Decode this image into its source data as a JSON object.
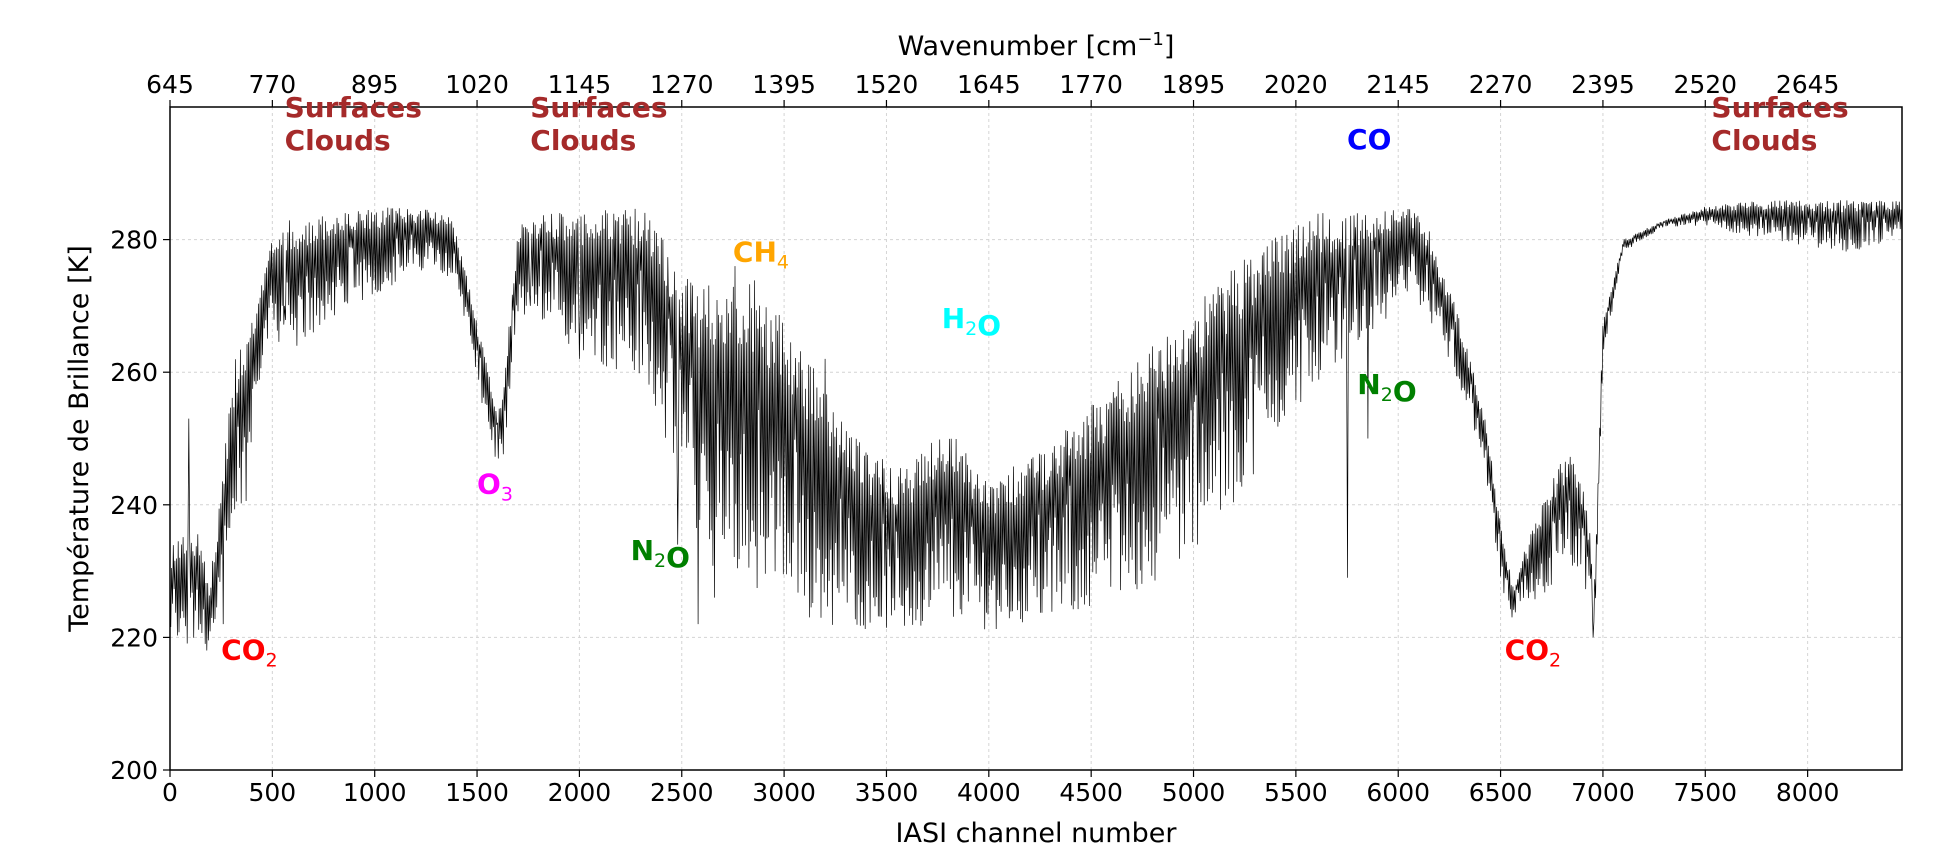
{
  "chart_data": {
    "type": "line",
    "xlabel": "IASI channel number",
    "ylabel": "Température de Brillance [K]",
    "x2label_main": "Wavenumber [cm",
    "x2label_sup": "−1",
    "x2label_end": "]",
    "xlim": [
      0,
      8461
    ],
    "ylim": [
      200,
      300
    ],
    "xticks": [
      0,
      500,
      1000,
      1500,
      2000,
      2500,
      3000,
      3500,
      4000,
      4500,
      5000,
      5500,
      6000,
      6500,
      7000,
      7500,
      8000
    ],
    "yticks": [
      200,
      220,
      240,
      260,
      280
    ],
    "x2ticks": [
      645,
      770,
      895,
      1020,
      1145,
      1270,
      1395,
      1520,
      1645,
      1770,
      1895,
      2020,
      2145,
      2270,
      2395,
      2520,
      2645
    ],
    "grid": true,
    "series": [
      {
        "color": "#000000",
        "envelope_top": [
          [
            0,
            234
          ],
          [
            80,
            237
          ],
          [
            140,
            236
          ],
          [
            190,
            228
          ],
          [
            230,
            236
          ],
          [
            270,
            250
          ],
          [
            320,
            262
          ],
          [
            370,
            265
          ],
          [
            420,
            270
          ],
          [
            460,
            275
          ],
          [
            500,
            281
          ],
          [
            560,
            283
          ],
          [
            800,
            284
          ],
          [
            1100,
            285
          ],
          [
            1280,
            285
          ],
          [
            1380,
            283
          ],
          [
            1440,
            276
          ],
          [
            1500,
            268
          ],
          [
            1560,
            260
          ],
          [
            1600,
            254
          ],
          [
            1640,
            262
          ],
          [
            1680,
            276
          ],
          [
            1700,
            283
          ],
          [
            1760,
            284
          ],
          [
            2000,
            284
          ],
          [
            2300,
            285
          ],
          [
            2420,
            280
          ],
          [
            2500,
            275
          ],
          [
            2600,
            273
          ],
          [
            2750,
            276
          ],
          [
            2900,
            273
          ],
          [
            3000,
            268
          ],
          [
            3200,
            258
          ],
          [
            3400,
            248
          ],
          [
            3600,
            246
          ],
          [
            3700,
            249
          ],
          [
            3800,
            252
          ],
          [
            3900,
            248
          ],
          [
            4000,
            244
          ],
          [
            4200,
            247
          ],
          [
            4400,
            252
          ],
          [
            4600,
            258
          ],
          [
            4800,
            264
          ],
          [
            5000,
            270
          ],
          [
            5200,
            276
          ],
          [
            5400,
            281
          ],
          [
            5600,
            284
          ],
          [
            5800,
            284
          ],
          [
            5950,
            285
          ],
          [
            6050,
            285
          ],
          [
            6150,
            282
          ],
          [
            6300,
            268
          ],
          [
            6420,
            254
          ],
          [
            6500,
            238
          ],
          [
            6560,
            228
          ],
          [
            6650,
            236
          ],
          [
            6780,
            246
          ],
          [
            6860,
            248
          ],
          [
            6920,
            240
          ],
          [
            6960,
            230
          ],
          [
            7000,
            268
          ],
          [
            7100,
            280
          ],
          [
            7300,
            283
          ],
          [
            7500,
            285
          ],
          [
            7800,
            286
          ],
          [
            8200,
            286
          ],
          [
            8461,
            286
          ]
        ],
        "envelope_bottom": [
          [
            0,
            219
          ],
          [
            80,
            218
          ],
          [
            190,
            218
          ],
          [
            230,
            219
          ],
          [
            270,
            225
          ],
          [
            320,
            235
          ],
          [
            370,
            238
          ],
          [
            420,
            256
          ],
          [
            460,
            263
          ],
          [
            500,
            266
          ],
          [
            560,
            263
          ],
          [
            800,
            268
          ],
          [
            1100,
            273
          ],
          [
            1280,
            276
          ],
          [
            1380,
            274
          ],
          [
            1440,
            268
          ],
          [
            1500,
            258
          ],
          [
            1560,
            250
          ],
          [
            1600,
            246
          ],
          [
            1640,
            247
          ],
          [
            1680,
            262
          ],
          [
            1700,
            268
          ],
          [
            1760,
            268
          ],
          [
            2000,
            263
          ],
          [
            2300,
            258
          ],
          [
            2420,
            250
          ],
          [
            2500,
            244
          ],
          [
            2600,
            232
          ],
          [
            2750,
            228
          ],
          [
            2900,
            226
          ],
          [
            3000,
            223
          ],
          [
            3200,
            222
          ],
          [
            3400,
            221
          ],
          [
            3600,
            220
          ],
          [
            3700,
            221
          ],
          [
            3800,
            223
          ],
          [
            3900,
            222
          ],
          [
            4000,
            221
          ],
          [
            4200,
            222
          ],
          [
            4400,
            223
          ],
          [
            4600,
            225
          ],
          [
            4800,
            228
          ],
          [
            5000,
            233
          ],
          [
            5200,
            240
          ],
          [
            5400,
            250
          ],
          [
            5600,
            258
          ],
          [
            5800,
            264
          ],
          [
            5950,
            268
          ],
          [
            6050,
            272
          ],
          [
            6150,
            268
          ],
          [
            6300,
            258
          ],
          [
            6420,
            246
          ],
          [
            6500,
            228
          ],
          [
            6560,
            222
          ],
          [
            6650,
            224
          ],
          [
            6780,
            228
          ],
          [
            6860,
            230
          ],
          [
            6920,
            225
          ],
          [
            6960,
            220
          ],
          [
            7000,
            262
          ],
          [
            7100,
            278
          ],
          [
            7300,
            282
          ],
          [
            7500,
            282
          ],
          [
            7800,
            280
          ],
          [
            8200,
            278
          ],
          [
            8461,
            280
          ]
        ],
        "spikes_down": [
          [
            100,
            226
          ],
          [
            260,
            222
          ],
          [
            560,
            270
          ],
          [
            620,
            264
          ],
          [
            700,
            266
          ],
          [
            1380,
            275
          ],
          [
            1760,
            270
          ],
          [
            2000,
            262
          ],
          [
            2480,
            234
          ],
          [
            2580,
            222
          ],
          [
            2660,
            226
          ],
          [
            5750,
            229
          ],
          [
            5850,
            250
          ],
          [
            6950,
            220
          ]
        ],
        "spikes_up": [
          [
            90,
            253
          ],
          [
            2760,
            276
          ],
          [
            3200,
            262
          ]
        ]
      }
    ],
    "annotations": [
      {
        "parts": [
          [
            "Surfaces",
            ""
          ]
        ],
        "line2": "Clouds",
        "color": "#a52a2a",
        "x": 560,
        "y": 298.5
      },
      {
        "parts": [
          [
            "Surfaces",
            ""
          ]
        ],
        "line2": "Clouds",
        "color": "#a52a2a",
        "x": 1760,
        "y": 298.5
      },
      {
        "parts": [
          [
            "Surfaces",
            ""
          ]
        ],
        "line2": "Clouds",
        "color": "#a52a2a",
        "x": 7530,
        "y": 298.5
      },
      {
        "parts": [
          [
            "CO",
            ""
          ]
        ],
        "line2": "",
        "color": "#0000ff",
        "x": 5750,
        "y": 293.7
      },
      {
        "parts": [
          [
            "CH",
            "4"
          ]
        ],
        "line2": "",
        "color": "#ffa500",
        "x": 2750,
        "y": 276.7
      },
      {
        "parts": [
          [
            "H",
            "2"
          ],
          [
            "O",
            ""
          ]
        ],
        "line2": "",
        "color": "#00ffff",
        "x": 3770,
        "y": 266.7
      },
      {
        "parts": [
          [
            "N",
            "2"
          ],
          [
            "O",
            ""
          ]
        ],
        "line2": "",
        "color": "#008000",
        "x": 5800,
        "y": 256.7
      },
      {
        "parts": [
          [
            "O",
            "3"
          ]
        ],
        "line2": "",
        "color": "#ff00ff",
        "x": 1500,
        "y": 241.7
      },
      {
        "parts": [
          [
            "N",
            "2"
          ],
          [
            "O",
            ""
          ]
        ],
        "line2": "",
        "color": "#008000",
        "x": 2250,
        "y": 231.7
      },
      {
        "parts": [
          [
            "CO",
            "2"
          ]
        ],
        "line2": "",
        "color": "#ff0000",
        "x": 250,
        "y": 216.7
      },
      {
        "parts": [
          [
            "CO",
            "2"
          ]
        ],
        "line2": "",
        "color": "#ff0000",
        "x": 6520,
        "y": 216.7
      }
    ]
  }
}
